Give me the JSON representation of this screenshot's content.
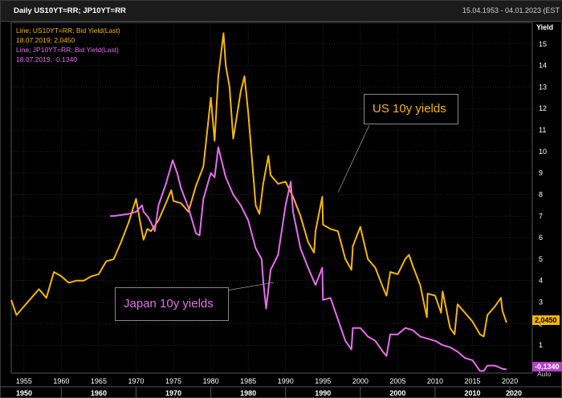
{
  "window": {
    "title_left": "Daily US10YT=RR; JP10YT=RR",
    "title_right": "15.04.1953 - 04.01.2023 (EST"
  },
  "legend": {
    "us_line": "Line; US10YT=RR; Bid Yield(Last)",
    "us_value": "18.07.2019; 2,0450",
    "jp_line": "Line; JP10YT=RR; Bid Yield(Last)",
    "jp_value": "18.07.2019; -0,1340"
  },
  "badges": {
    "us": "2,0450",
    "jp": "-0,1340",
    "auto": "Auto"
  },
  "callouts": {
    "us": "US 10y yields",
    "jp": "Japan 10y yields"
  },
  "colors": {
    "us": "#f5b800",
    "jp": "#e86df0",
    "background": "#000000",
    "grid": "#3a3a3a"
  },
  "chart_data": {
    "type": "line",
    "ylabel": "Yield",
    "xlim": [
      1953.3,
      2023
    ],
    "ylim": [
      -0.3,
      16
    ],
    "yticks": [
      1,
      2,
      3,
      4,
      5,
      6,
      7,
      8,
      9,
      10,
      11,
      12,
      13,
      14,
      15
    ],
    "ytick_labels": [
      "1",
      "2",
      "3",
      "4",
      "5",
      "6",
      "7",
      "8",
      "9",
      "10",
      "11",
      "12",
      "13",
      "14",
      "15"
    ],
    "xticks_minor": [
      1955,
      1960,
      1965,
      1970,
      1975,
      1980,
      1985,
      1990,
      1995,
      2000,
      2005,
      2010,
      2015,
      2020
    ],
    "xtick_minor_labels": [
      "1955",
      "1960",
      "1965",
      "1970",
      "1975",
      "1980",
      "1985",
      "1990",
      "1995",
      "2000",
      "2005",
      "2010",
      "2015",
      "2020"
    ],
    "xticks_major": [
      1950,
      1960,
      1970,
      1980,
      1990,
      2000,
      2010,
      2020
    ],
    "xtick_major_labels": [
      "1950",
      "1960",
      "1970",
      "1980",
      "1990",
      "2000",
      "2010",
      "2020"
    ],
    "grid": true,
    "series": [
      {
        "name": "US10YT=RR",
        "x": [
          1953.3,
          1954,
          1955,
          1956,
          1957,
          1958,
          1959,
          1960,
          1961,
          1962,
          1963,
          1964,
          1965,
          1966,
          1967,
          1968,
          1969,
          1970,
          1970.5,
          1971,
          1971.5,
          1972,
          1973,
          1974,
          1974.7,
          1975,
          1976,
          1977,
          1978,
          1979,
          1980,
          1980.5,
          1981,
          1981.7,
          1982,
          1982.5,
          1983,
          1984,
          1984.5,
          1985,
          1986,
          1986.5,
          1987,
          1987.7,
          1988,
          1989,
          1990,
          1991,
          1992,
          1993,
          1993.8,
          1994,
          1994.9,
          1995,
          1996,
          1997,
          1998,
          1998.8,
          1999,
          2000,
          2001,
          2002,
          2003,
          2003.5,
          2004,
          2005,
          2006,
          2006.5,
          2007,
          2008,
          2008.9,
          2009,
          2010,
          2010.8,
          2011,
          2012,
          2012.6,
          2013,
          2014,
          2015,
          2016,
          2016.5,
          2017,
          2018,
          2018.8,
          2019,
          2019.55
        ],
        "values": [
          3.1,
          2.4,
          2.8,
          3.2,
          3.6,
          3.2,
          4.4,
          4.2,
          3.9,
          4.0,
          4.0,
          4.2,
          4.3,
          4.9,
          5.0,
          5.8,
          6.7,
          7.8,
          6.8,
          5.9,
          6.4,
          6.3,
          6.8,
          7.6,
          8.2,
          7.7,
          7.6,
          7.2,
          8.4,
          9.3,
          12.5,
          10.5,
          13.5,
          15.5,
          14.0,
          13.0,
          10.6,
          12.8,
          13.5,
          11.8,
          7.5,
          7.1,
          8.5,
          9.8,
          8.9,
          8.5,
          8.6,
          7.9,
          7.0,
          5.8,
          5.3,
          6.3,
          7.9,
          6.6,
          6.4,
          6.3,
          5.0,
          4.5,
          5.6,
          6.5,
          5.0,
          4.6,
          3.7,
          3.3,
          4.4,
          4.3,
          5.0,
          5.2,
          4.7,
          3.8,
          2.3,
          3.4,
          3.3,
          2.5,
          3.5,
          1.8,
          1.5,
          2.9,
          2.5,
          2.1,
          1.5,
          1.4,
          2.4,
          2.8,
          3.2,
          2.6,
          2.05
        ]
      },
      {
        "name": "JP10YT=RR",
        "x": [
          1966.5,
          1967,
          1968,
          1969,
          1970,
          1970.8,
          1971,
          1971.5,
          1972,
          1972.5,
          1973,
          1974,
          1974.9,
          1975.5,
          1976,
          1977,
          1978,
          1978.5,
          1979,
          1980,
          1980.5,
          1981,
          1982,
          1983,
          1984,
          1985,
          1986,
          1986.8,
          1987,
          1987.4,
          1988,
          1989,
          1990,
          1990.7,
          1991,
          1992,
          1993,
          1994,
          1994.9,
          1995,
          1996,
          1997,
          1998,
          1998.8,
          1999,
          2000,
          2001,
          2002,
          2003,
          2003.5,
          2004,
          2005,
          2006,
          2007,
          2008,
          2009,
          2010,
          2011,
          2012,
          2013,
          2014,
          2015,
          2016,
          2016.5,
          2017,
          2018,
          2019,
          2019.55
        ],
        "values": [
          7.0,
          7.0,
          7.05,
          7.1,
          7.2,
          7.5,
          7.2,
          7.0,
          6.7,
          6.3,
          7.5,
          8.5,
          9.6,
          9.0,
          8.3,
          7.4,
          6.2,
          6.1,
          7.8,
          9.0,
          8.8,
          10.2,
          8.8,
          8.0,
          7.5,
          6.8,
          5.5,
          5.0,
          4.0,
          2.7,
          4.5,
          5.2,
          7.5,
          8.6,
          7.2,
          5.5,
          4.6,
          3.8,
          4.6,
          3.1,
          3.2,
          2.2,
          1.2,
          0.8,
          1.8,
          1.8,
          1.4,
          1.2,
          0.7,
          0.5,
          1.5,
          1.5,
          1.8,
          1.7,
          1.4,
          1.3,
          1.2,
          1.0,
          0.9,
          0.7,
          0.4,
          0.3,
          -0.2,
          -0.2,
          0.05,
          0.05,
          -0.1,
          -0.13
        ]
      }
    ]
  }
}
